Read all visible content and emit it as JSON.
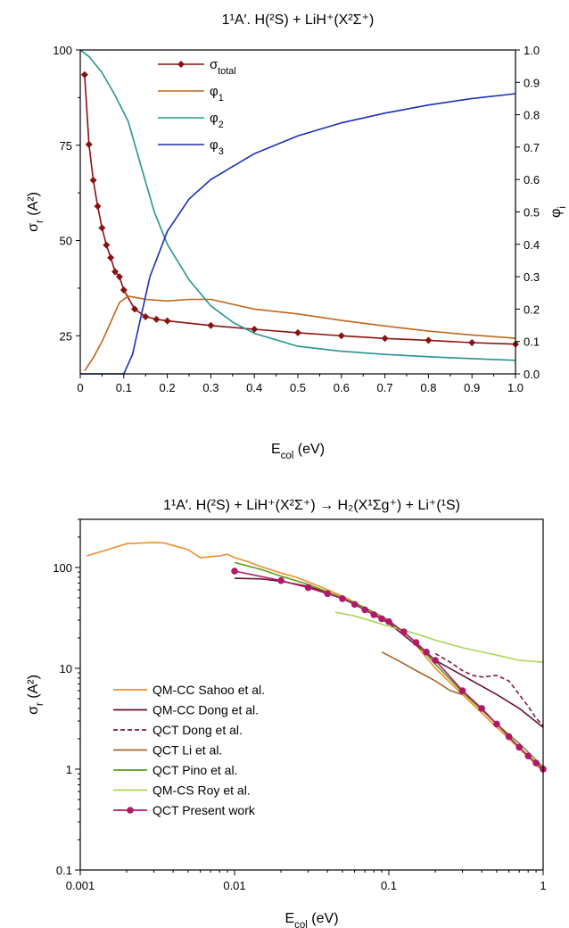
{
  "chart_data": [
    {
      "type": "line",
      "title": "1¹A′. H(²S) + LiH⁺(X²Σ⁺)",
      "xlabel": "E_col (eV)",
      "ylabel": "σ_r (A²)",
      "y2label": "φ_i",
      "xlim": [
        0,
        1.0
      ],
      "ylim": [
        15,
        100
      ],
      "y2lim": [
        0,
        1.0
      ],
      "xticks": [
        0,
        0.1,
        0.2,
        0.3,
        0.4,
        0.5,
        0.6,
        0.7,
        0.8,
        0.9,
        1.0
      ],
      "yticks": [
        25,
        50,
        75,
        100
      ],
      "y2ticks": [
        0,
        0.1,
        0.2,
        0.3,
        0.4,
        0.5,
        0.6,
        0.7,
        0.8,
        0.9,
        1.0
      ],
      "grid": false,
      "legend_position": "top-left",
      "series": [
        {
          "name": "σ_total",
          "axis": "left",
          "color": "#8b1010",
          "marker": "diamond",
          "x": [
            0.01,
            0.02,
            0.03,
            0.04,
            0.05,
            0.06,
            0.07,
            0.08,
            0.09,
            0.1,
            0.125,
            0.15,
            0.175,
            0.2,
            0.3,
            0.4,
            0.5,
            0.6,
            0.7,
            0.8,
            0.9,
            1.0
          ],
          "y": [
            93.5,
            75.2,
            65.8,
            59.0,
            53.3,
            48.8,
            45.5,
            41.8,
            40.5,
            37.0,
            32.0,
            30.0,
            29.3,
            28.9,
            27.7,
            26.7,
            25.8,
            25.0,
            24.3,
            23.8,
            23.2,
            22.8
          ]
        },
        {
          "name": "φ_1",
          "axis": "right",
          "color": "#c0651b",
          "x": [
            0.01,
            0.03,
            0.05,
            0.07,
            0.09,
            0.11,
            0.13,
            0.15,
            0.2,
            0.25,
            0.3,
            0.35,
            0.4,
            0.5,
            0.6,
            0.7,
            0.8,
            0.9,
            1.0
          ],
          "y": [
            0.01,
            0.05,
            0.1,
            0.16,
            0.22,
            0.24,
            0.235,
            0.23,
            0.225,
            0.23,
            0.23,
            0.215,
            0.2,
            0.185,
            0.165,
            0.148,
            0.132,
            0.12,
            0.11
          ]
        },
        {
          "name": "φ_2",
          "axis": "right",
          "color": "#24958e",
          "x": [
            0.0,
            0.02,
            0.05,
            0.08,
            0.11,
            0.14,
            0.17,
            0.2,
            0.25,
            0.3,
            0.35,
            0.4,
            0.5,
            0.6,
            0.7,
            0.8,
            0.9,
            1.0
          ],
          "y": [
            1.0,
            0.98,
            0.93,
            0.86,
            0.78,
            0.64,
            0.5,
            0.4,
            0.29,
            0.21,
            0.16,
            0.125,
            0.085,
            0.07,
            0.06,
            0.053,
            0.047,
            0.042
          ]
        },
        {
          "name": "φ_3",
          "axis": "right",
          "color": "#1c2fb8",
          "x": [
            0.0,
            0.1,
            0.12,
            0.14,
            0.16,
            0.2,
            0.25,
            0.3,
            0.4,
            0.5,
            0.6,
            0.7,
            0.8,
            0.9,
            1.0
          ],
          "y": [
            0.0,
            0.0,
            0.06,
            0.18,
            0.3,
            0.44,
            0.54,
            0.6,
            0.68,
            0.735,
            0.775,
            0.805,
            0.83,
            0.85,
            0.865
          ]
        }
      ]
    },
    {
      "type": "line",
      "title": "1¹A′. H(²S) + LiH⁺(X²Σ⁺) → H₂(X¹Σg⁺) + Li⁺(¹S)",
      "xlabel": "E_col (eV)",
      "ylabel": "σ_r (A²)",
      "xscale": "log",
      "yscale": "log",
      "xlim": [
        0.001,
        1
      ],
      "ylim": [
        0.1,
        300
      ],
      "xtick_labels": [
        "0.001",
        "0.01",
        "0.1",
        "1"
      ],
      "ytick_labels": [
        "0.1",
        "1",
        "10",
        "100"
      ],
      "grid": false,
      "legend_position": "bottom-left",
      "series": [
        {
          "name": "QM-CC  Sahoo et al.",
          "color": "#f28c28",
          "style": "solid",
          "x": [
            0.0011,
            0.0015,
            0.002,
            0.0025,
            0.003,
            0.0035,
            0.004,
            0.005,
            0.006,
            0.007,
            0.008,
            0.009,
            0.01,
            0.012,
            0.014,
            0.017,
            0.02,
            0.025,
            0.03,
            0.04,
            0.05,
            0.06,
            0.08,
            0.1,
            0.15,
            0.2,
            0.3,
            0.5,
            0.7,
            1.0
          ],
          "y": [
            130,
            150,
            172,
            175,
            177,
            175,
            165,
            150,
            125,
            128,
            130,
            135,
            125,
            115,
            105,
            95,
            88,
            80,
            72,
            60,
            52,
            45,
            35,
            28,
            17,
            10,
            5.5,
            2.6,
            1.6,
            0.95
          ]
        },
        {
          "name": "QM-CC  Dong et al.",
          "color": "#6b0f2e",
          "style": "solid",
          "x": [
            0.01,
            0.015,
            0.02,
            0.03,
            0.05,
            0.07,
            0.1,
            0.15,
            0.2,
            0.3,
            0.5,
            0.7,
            1.0
          ],
          "y": [
            78,
            77,
            73,
            65,
            50,
            38,
            28,
            17,
            12,
            8.5,
            5.5,
            4.0,
            2.6
          ]
        },
        {
          "name": "QCT  Dong et al.",
          "color": "#7a1d3a",
          "style": "dashed",
          "x": [
            0.2,
            0.25,
            0.3,
            0.35,
            0.4,
            0.5,
            0.6,
            0.7,
            0.8,
            0.9,
            1.0
          ],
          "y": [
            14,
            11.5,
            9.5,
            8.5,
            8.2,
            8.5,
            7.5,
            5.5,
            4.2,
            3.2,
            2.7
          ]
        },
        {
          "name": "QCT Li et al.",
          "color": "#a8642a",
          "style": "solid",
          "x": [
            0.09,
            0.12,
            0.15,
            0.2,
            0.25,
            0.3
          ],
          "y": [
            14.5,
            11.5,
            9.5,
            7.5,
            6.0,
            5.5
          ]
        },
        {
          "name": "QCT Pino et al.",
          "color": "#5a9e1a",
          "style": "solid",
          "x": [
            0.01,
            0.015,
            0.02,
            0.03,
            0.05,
            0.07,
            0.1,
            0.15,
            0.2,
            0.3,
            0.5,
            0.7,
            1.0
          ],
          "y": [
            112,
            95,
            82,
            68,
            50,
            40,
            30,
            18,
            11,
            5.8,
            2.8,
            1.8,
            1.05
          ]
        },
        {
          "name": "QM-CS Roy et al.",
          "color": "#a8d85a",
          "style": "solid",
          "x": [
            0.045,
            0.06,
            0.08,
            0.1,
            0.15,
            0.2,
            0.3,
            0.5,
            0.7,
            1.0
          ],
          "y": [
            36,
            33,
            29,
            26,
            22,
            19,
            16,
            13.5,
            12,
            11.5
          ]
        },
        {
          "name": "QCT Present work",
          "color": "#b0186a",
          "style": "solid",
          "marker": "circle",
          "x": [
            0.01,
            0.02,
            0.03,
            0.04,
            0.05,
            0.06,
            0.07,
            0.08,
            0.09,
            0.1,
            0.125,
            0.15,
            0.175,
            0.2,
            0.3,
            0.4,
            0.5,
            0.6,
            0.7,
            0.8,
            0.9,
            1.0
          ],
          "y": [
            92,
            74,
            63,
            55,
            49,
            43,
            38,
            34,
            31,
            29,
            23,
            18,
            14.5,
            12,
            6.0,
            4.0,
            2.8,
            2.1,
            1.65,
            1.35,
            1.15,
            1.0
          ]
        }
      ]
    }
  ]
}
